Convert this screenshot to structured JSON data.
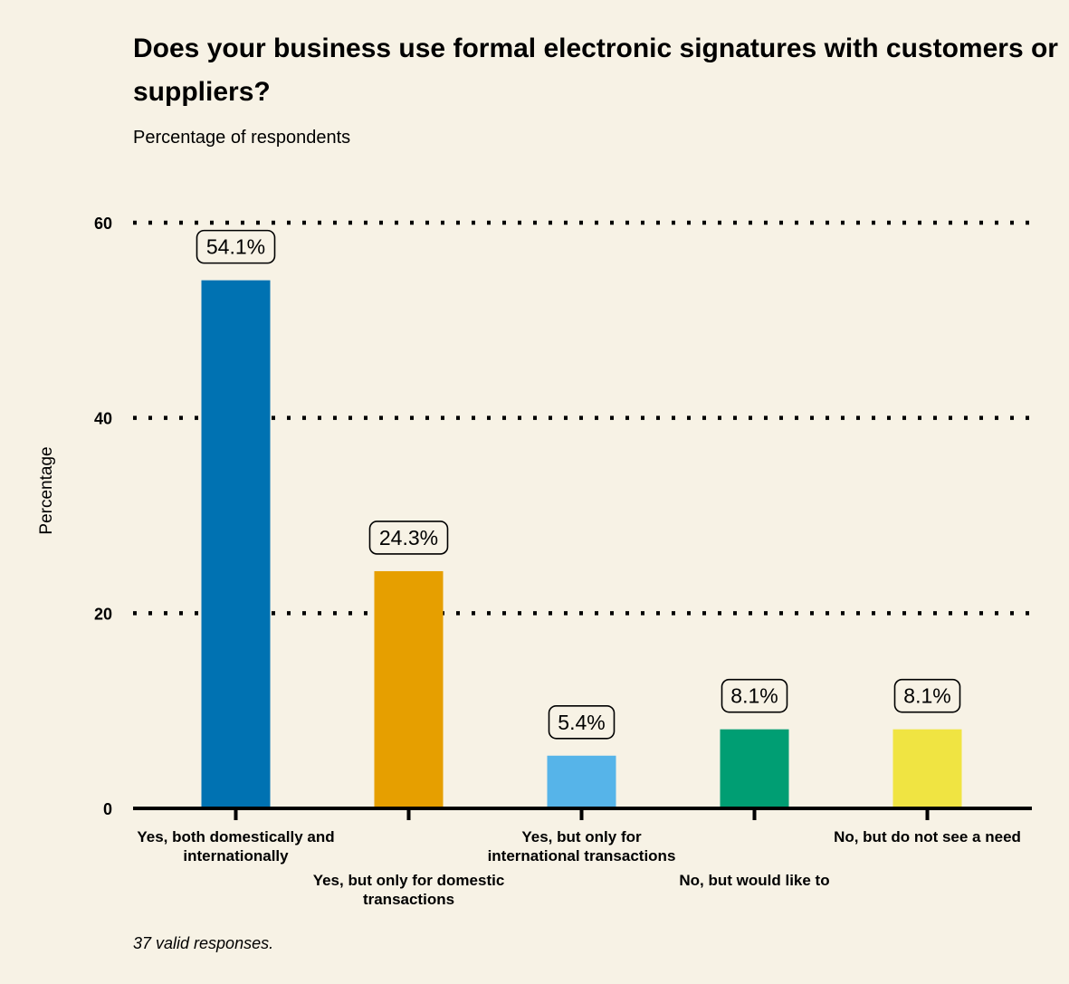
{
  "title": "Does your business use formal electronic signatures with customers or suppliers?",
  "subtitle": "Percentage of respondents",
  "footnote": "37 valid responses.",
  "chart_data": {
    "type": "bar",
    "categories": [
      "Yes, both domestically and internationally",
      "Yes, but only for domestic transactions",
      "Yes, but only for international transactions",
      "No, but would like to",
      "No, but do not see a need"
    ],
    "category_label_lines": [
      [
        "Yes, both domestically and",
        "internationally"
      ],
      [
        "Yes, but only for domestic",
        "transactions"
      ],
      [
        "Yes, but only for",
        "international transactions"
      ],
      [
        "No, but would like to"
      ],
      [
        "No, but do not see a need"
      ]
    ],
    "values": [
      54.1,
      24.3,
      5.4,
      8.1,
      8.1
    ],
    "value_labels": [
      "54.1%",
      "24.3%",
      "5.4%",
      "8.1%",
      "8.1%"
    ],
    "colors": [
      "#0072b2",
      "#e69f00",
      "#56b4e9",
      "#009e73",
      "#f0e442"
    ],
    "ylabel": "Percentage",
    "xlabel": "",
    "ylim": [
      0,
      60
    ],
    "yticks": [
      0,
      20,
      40,
      60
    ],
    "grid": true,
    "grid_style": "dotted"
  }
}
